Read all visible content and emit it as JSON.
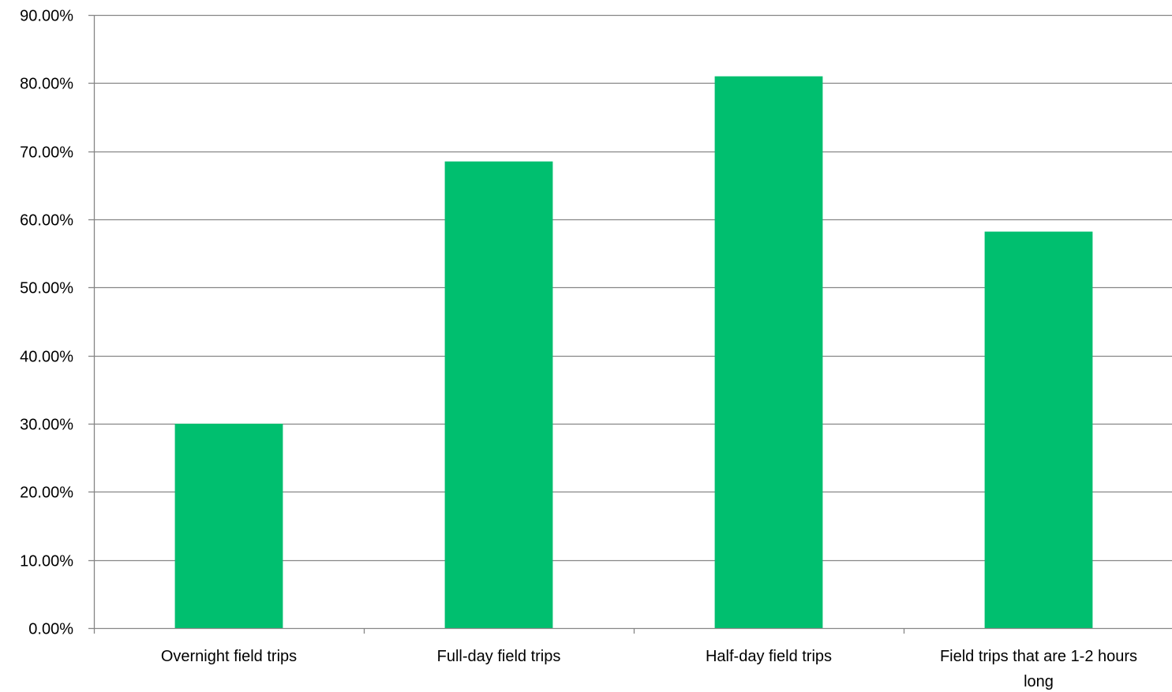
{
  "chart_data": {
    "type": "bar",
    "title": "",
    "xlabel": "",
    "ylabel": "",
    "categories": [
      [
        "Overnight field trips"
      ],
      [
        "Full-day field trips"
      ],
      [
        "Half-day field trips"
      ],
      [
        "Field trips that are 1-2 hours",
        "long"
      ]
    ],
    "series": [
      {
        "values": [
          0.3,
          0.685,
          0.81,
          0.582
        ],
        "color": "#00BF6F"
      }
    ],
    "ylim": [
      0,
      0.9
    ],
    "yticks": [
      "0.00%",
      "10.00%",
      "20.00%",
      "30.00%",
      "40.00%",
      "50.00%",
      "60.00%",
      "70.00%",
      "80.00%",
      "90.00%"
    ],
    "grid": true,
    "legend": "none",
    "colors": {
      "bar": "#00BF6F",
      "grid": "#868686",
      "axis": "#868686"
    }
  }
}
